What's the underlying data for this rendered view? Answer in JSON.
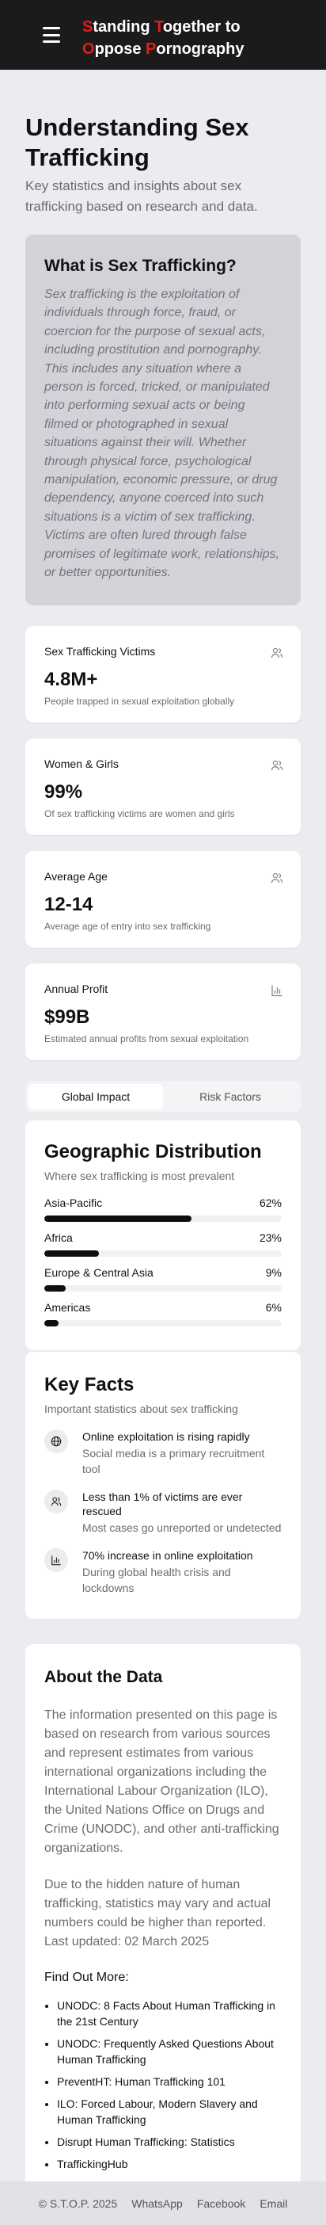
{
  "header": {
    "brand": {
      "w1_cap": "S",
      "w1_rest": "tanding ",
      "w2_cap": "T",
      "w2_rest": "ogether to",
      "w3_cap": "O",
      "w3_rest": "ppose ",
      "w4_cap": "P",
      "w4_rest": "ornography"
    },
    "menu_icon": "hamburger-menu-icon",
    "accent_color": "#e11d1d"
  },
  "hero": {
    "title": "Understanding Sex Trafficking",
    "subtitle": "Key statistics and insights about sex trafficking based on research and data."
  },
  "definition": {
    "title": "What is Sex Trafficking?",
    "text": "Sex trafficking is the exploitation of individuals through force, fraud, or coercion for the purpose of sexual acts, including prostitution and pornography. This includes any situation where a person is forced, tricked, or manipulated into performing sexual acts or being filmed or photographed in sexual situations against their will. Whether through physical force, psychological manipulation, economic pressure, or drug dependency, anyone coerced into such situations is a victim of sex trafficking. Victims are often lured through false promises of legitimate work, relationships, or better opportunities."
  },
  "stats": [
    {
      "label": "Sex Trafficking Victims",
      "value": "4.8M+",
      "desc": "People trapped in sexual exploitation globally",
      "icon": "users-icon"
    },
    {
      "label": "Women & Girls",
      "value": "99%",
      "desc": "Of sex trafficking victims are women and girls",
      "icon": "users-icon"
    },
    {
      "label": "Average Age",
      "value": "12-14",
      "desc": "Average age of entry into sex trafficking",
      "icon": "users-icon"
    },
    {
      "label": "Annual Profit",
      "value": "$99B",
      "desc": "Estimated annual profits from sexual exploitation",
      "icon": "bar-chart-icon"
    }
  ],
  "tabs": [
    {
      "label": "Global Impact",
      "active": true
    },
    {
      "label": "Risk Factors",
      "active": false
    }
  ],
  "geo": {
    "title": "Geographic Distribution",
    "subtitle": "Where sex trafficking is most prevalent",
    "rows": [
      {
        "region": "Asia-Pacific",
        "pct_label": "62%",
        "pct": 62
      },
      {
        "region": "Africa",
        "pct_label": "23%",
        "pct": 23
      },
      {
        "region": "Europe & Central Asia",
        "pct_label": "9%",
        "pct": 9
      },
      {
        "region": "Americas",
        "pct_label": "6%",
        "pct": 6
      }
    ]
  },
  "facts": {
    "title": "Key Facts",
    "subtitle": "Important statistics about sex trafficking",
    "items": [
      {
        "title": "Online exploitation is rising rapidly",
        "desc": "Social media is a primary recruitment tool",
        "icon": "globe-icon"
      },
      {
        "title": "Less than 1% of victims are ever rescued",
        "desc": "Most cases go unreported or undetected",
        "icon": "users-icon"
      },
      {
        "title": "70% increase in online exploitation",
        "desc": "During global health crisis and lockdowns",
        "icon": "bar-chart-icon"
      }
    ]
  },
  "about": {
    "title": "About the Data",
    "p1": "The information presented on this page is based on research from various sources and represent estimates from various international organizations including the International Labour Organization (ILO), the United Nations Office on Drugs and Crime (UNODC), and other anti-trafficking organizations.",
    "p2": "Due to the hidden nature of human trafficking, statistics may vary and actual numbers could be higher than reported. Last updated: 02 March 2025",
    "find_more": "Find Out More:",
    "links": [
      "UNODC: 8 Facts About Human Trafficking in the 21st Century",
      "UNODC: Frequently Asked Questions About Human Trafficking",
      "PreventHT: Human Trafficking 101",
      "ILO: Forced Labour, Modern Slavery and Human Trafficking",
      "Disrupt Human Trafficking: Statistics",
      "TraffickingHub"
    ]
  },
  "footer": {
    "copyright": "© S.T.O.P. 2025",
    "links": [
      "WhatsApp",
      "Facebook",
      "Email"
    ]
  }
}
